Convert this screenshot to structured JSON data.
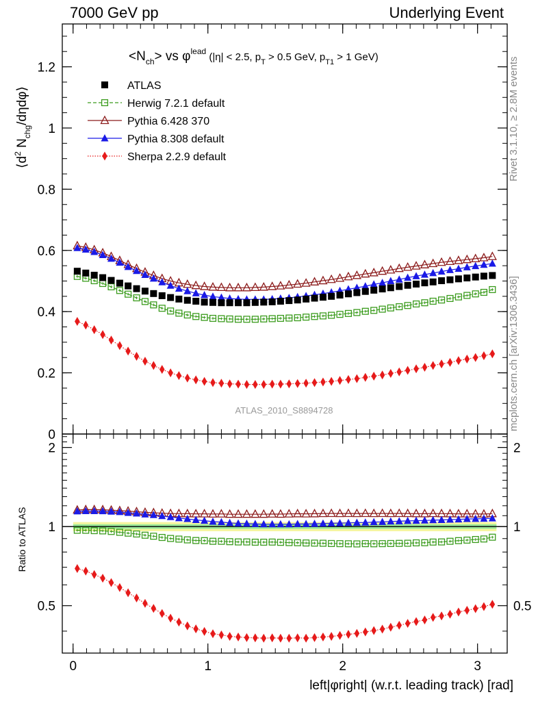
{
  "header": {
    "left": "7000 GeV pp",
    "right": "Underlying Event"
  },
  "side": {
    "top": "Rivet 3.1.10, ≥ 2.8M events",
    "bottom": "mcplots.cern.ch [arXiv:1306.3436]"
  },
  "chart_data": [
    {
      "type": "scatter",
      "panel": "main",
      "title": "<N_ch> vs φ^lead (|η| < 2.5, p_T > 0.5 GeV, p_T1 > 1 GeV)",
      "title_parts": {
        "a": "<N",
        "a_sub": "ch",
        "b": "> vs ",
        "c": "φ",
        "c_sup": "lead",
        "d": " (|η| < 2.5, p",
        "d_sub": "T",
        "e": " > 0.5 GeV, p",
        "e_sub": "T1",
        "f": " > 1 GeV)"
      },
      "ylabel": "⟨d² N_chg/dηdφ⟩",
      "ylabel_parts": {
        "a": "⟨d",
        "a_sup": "2",
        "b": " N",
        "b_sub": "chg",
        "c": "/dηdφ⟩"
      },
      "xlabel": "left|φright| (w.r.t. leading track) [rad]",
      "xlim": [
        -0.08,
        3.22
      ],
      "ylim": [
        0,
        1.34
      ],
      "yticks": [
        0,
        0.2,
        0.4,
        0.6,
        0.8,
        1,
        1.2
      ],
      "ytick_labels": [
        "0",
        "0.2",
        "0.4",
        "0.6",
        "0.8",
        "1",
        "1.2"
      ],
      "watermark": "ATLAS_2010_S8894728",
      "legend_position": "top-left",
      "x": [
        0.031,
        0.094,
        0.157,
        0.22,
        0.283,
        0.346,
        0.408,
        0.471,
        0.534,
        0.597,
        0.66,
        0.723,
        0.785,
        0.848,
        0.911,
        0.974,
        1.037,
        1.1,
        1.162,
        1.225,
        1.288,
        1.351,
        1.414,
        1.477,
        1.539,
        1.602,
        1.665,
        1.728,
        1.791,
        1.854,
        1.916,
        1.979,
        2.042,
        2.105,
        2.168,
        2.231,
        2.294,
        2.356,
        2.419,
        2.482,
        2.545,
        2.608,
        2.67,
        2.733,
        2.796,
        2.859,
        2.922,
        2.985,
        3.047,
        3.11
      ],
      "series": [
        {
          "name": "ATLAS",
          "color": "#000000",
          "marker": "filled-square",
          "values": [
            0.532,
            0.526,
            0.519,
            0.511,
            0.502,
            0.493,
            0.484,
            0.475,
            0.467,
            0.459,
            0.452,
            0.446,
            0.441,
            0.437,
            0.434,
            0.431,
            0.43,
            0.429,
            0.429,
            0.429,
            0.429,
            0.43,
            0.431,
            0.432,
            0.434,
            0.436,
            0.438,
            0.441,
            0.444,
            0.447,
            0.45,
            0.454,
            0.458,
            0.462,
            0.466,
            0.47,
            0.474,
            0.478,
            0.482,
            0.486,
            0.49,
            0.494,
            0.497,
            0.501,
            0.504,
            0.507,
            0.51,
            0.513,
            0.516,
            0.518
          ]
        },
        {
          "name": "Herwig 7.2.1 default",
          "color": "#3a9b1c",
          "marker": "open-square",
          "line": "dashed",
          "values": [
            0.515,
            0.509,
            0.501,
            0.492,
            0.481,
            0.469,
            0.457,
            0.445,
            0.433,
            0.422,
            0.411,
            0.402,
            0.395,
            0.389,
            0.384,
            0.381,
            0.378,
            0.377,
            0.376,
            0.375,
            0.375,
            0.375,
            0.376,
            0.377,
            0.378,
            0.379,
            0.38,
            0.382,
            0.384,
            0.386,
            0.388,
            0.391,
            0.394,
            0.397,
            0.401,
            0.404,
            0.408,
            0.412,
            0.416,
            0.42,
            0.425,
            0.429,
            0.434,
            0.438,
            0.443,
            0.448,
            0.453,
            0.458,
            0.463,
            0.472
          ]
        },
        {
          "name": "Pythia 6.428 370",
          "color": "#8b1a1a",
          "marker": "open-triangle",
          "line": "solid",
          "values": [
            0.615,
            0.61,
            0.602,
            0.592,
            0.58,
            0.567,
            0.554,
            0.541,
            0.529,
            0.518,
            0.508,
            0.5,
            0.494,
            0.489,
            0.485,
            0.482,
            0.48,
            0.479,
            0.478,
            0.478,
            0.478,
            0.479,
            0.48,
            0.482,
            0.484,
            0.487,
            0.49,
            0.493,
            0.497,
            0.501,
            0.505,
            0.509,
            0.514,
            0.518,
            0.523,
            0.527,
            0.532,
            0.536,
            0.541,
            0.545,
            0.549,
            0.553,
            0.557,
            0.561,
            0.564,
            0.567,
            0.57,
            0.573,
            0.576,
            0.58
          ]
        },
        {
          "name": "Pythia 8.308 default",
          "color": "#1a1ae6",
          "marker": "filled-triangle",
          "line": "solid",
          "values": [
            0.608,
            0.603,
            0.595,
            0.585,
            0.573,
            0.56,
            0.546,
            0.533,
            0.52,
            0.508,
            0.496,
            0.485,
            0.475,
            0.467,
            0.46,
            0.454,
            0.449,
            0.446,
            0.443,
            0.441,
            0.44,
            0.44,
            0.44,
            0.441,
            0.443,
            0.445,
            0.448,
            0.451,
            0.455,
            0.459,
            0.463,
            0.468,
            0.473,
            0.478,
            0.483,
            0.489,
            0.494,
            0.5,
            0.505,
            0.511,
            0.516,
            0.521,
            0.526,
            0.531,
            0.536,
            0.54,
            0.545,
            0.549,
            0.553,
            0.557
          ]
        },
        {
          "name": "Sherpa 2.2.9 default",
          "color": "#e61a1a",
          "marker": "filled-diamond",
          "line": "dotted",
          "values": [
            0.368,
            0.356,
            0.341,
            0.325,
            0.307,
            0.289,
            0.271,
            0.254,
            0.238,
            0.224,
            0.211,
            0.2,
            0.191,
            0.183,
            0.177,
            0.172,
            0.168,
            0.166,
            0.164,
            0.163,
            0.162,
            0.162,
            0.162,
            0.163,
            0.163,
            0.164,
            0.165,
            0.166,
            0.168,
            0.17,
            0.172,
            0.175,
            0.178,
            0.181,
            0.185,
            0.189,
            0.193,
            0.198,
            0.203,
            0.208,
            0.213,
            0.218,
            0.224,
            0.229,
            0.234,
            0.24,
            0.245,
            0.25,
            0.256,
            0.262
          ]
        }
      ]
    },
    {
      "type": "scatter",
      "panel": "ratio",
      "ylabel": "Ratio to ATLAS",
      "xlabel": "left|φright| (w.r.t. leading track) [rad]",
      "xlim": [
        -0.08,
        3.22
      ],
      "ylim": [
        0.33,
        2.25
      ],
      "yticks_major": [
        0.5,
        1,
        2
      ],
      "ytick_labels": [
        "0.5",
        "1",
        "2"
      ],
      "xticks": [
        0,
        1,
        2,
        3
      ],
      "xtick_labels": [
        "0",
        "1",
        "2",
        "3"
      ],
      "ratio_series": [
        {
          "name": "Herwig 7.2.1 default",
          "color": "#3a9b1c",
          "values": [
            0.968,
            0.968,
            0.965,
            0.963,
            0.958,
            0.951,
            0.944,
            0.937,
            0.927,
            0.919,
            0.909,
            0.901,
            0.896,
            0.89,
            0.885,
            0.884,
            0.879,
            0.879,
            0.876,
            0.874,
            0.874,
            0.872,
            0.872,
            0.873,
            0.871,
            0.869,
            0.868,
            0.866,
            0.865,
            0.864,
            0.862,
            0.861,
            0.86,
            0.859,
            0.861,
            0.86,
            0.861,
            0.862,
            0.863,
            0.864,
            0.867,
            0.868,
            0.873,
            0.874,
            0.879,
            0.884,
            0.888,
            0.893,
            0.897,
            0.911
          ]
        },
        {
          "name": "Pythia 6.428 370",
          "color": "#8b1a1a",
          "values": [
            1.156,
            1.16,
            1.16,
            1.159,
            1.155,
            1.15,
            1.145,
            1.139,
            1.133,
            1.129,
            1.124,
            1.121,
            1.12,
            1.119,
            1.118,
            1.118,
            1.116,
            1.117,
            1.114,
            1.114,
            1.114,
            1.114,
            1.114,
            1.116,
            1.115,
            1.117,
            1.119,
            1.118,
            1.119,
            1.121,
            1.122,
            1.121,
            1.122,
            1.121,
            1.122,
            1.121,
            1.122,
            1.121,
            1.122,
            1.121,
            1.12,
            1.119,
            1.121,
            1.12,
            1.119,
            1.118,
            1.118,
            1.117,
            1.116,
            1.12
          ]
        },
        {
          "name": "Pythia 8.308 default",
          "color": "#1a1ae6",
          "values": [
            1.143,
            1.146,
            1.146,
            1.145,
            1.141,
            1.136,
            1.128,
            1.122,
            1.113,
            1.107,
            1.097,
            1.087,
            1.077,
            1.069,
            1.06,
            1.053,
            1.044,
            1.04,
            1.033,
            1.028,
            1.026,
            1.023,
            1.021,
            1.021,
            1.021,
            1.021,
            1.023,
            1.023,
            1.025,
            1.027,
            1.029,
            1.031,
            1.033,
            1.035,
            1.036,
            1.04,
            1.042,
            1.046,
            1.048,
            1.051,
            1.053,
            1.055,
            1.058,
            1.06,
            1.063,
            1.065,
            1.069,
            1.07,
            1.072,
            1.075
          ]
        },
        {
          "name": "Sherpa 2.2.9 default",
          "color": "#e61a1a",
          "values": [
            0.692,
            0.677,
            0.657,
            0.636,
            0.612,
            0.586,
            0.56,
            0.535,
            0.51,
            0.488,
            0.467,
            0.448,
            0.433,
            0.419,
            0.408,
            0.399,
            0.391,
            0.387,
            0.382,
            0.38,
            0.378,
            0.377,
            0.376,
            0.377,
            0.376,
            0.376,
            0.377,
            0.376,
            0.378,
            0.38,
            0.382,
            0.385,
            0.389,
            0.392,
            0.397,
            0.402,
            0.407,
            0.414,
            0.421,
            0.428,
            0.435,
            0.441,
            0.451,
            0.457,
            0.464,
            0.473,
            0.48,
            0.487,
            0.496,
            0.506
          ]
        }
      ]
    }
  ]
}
